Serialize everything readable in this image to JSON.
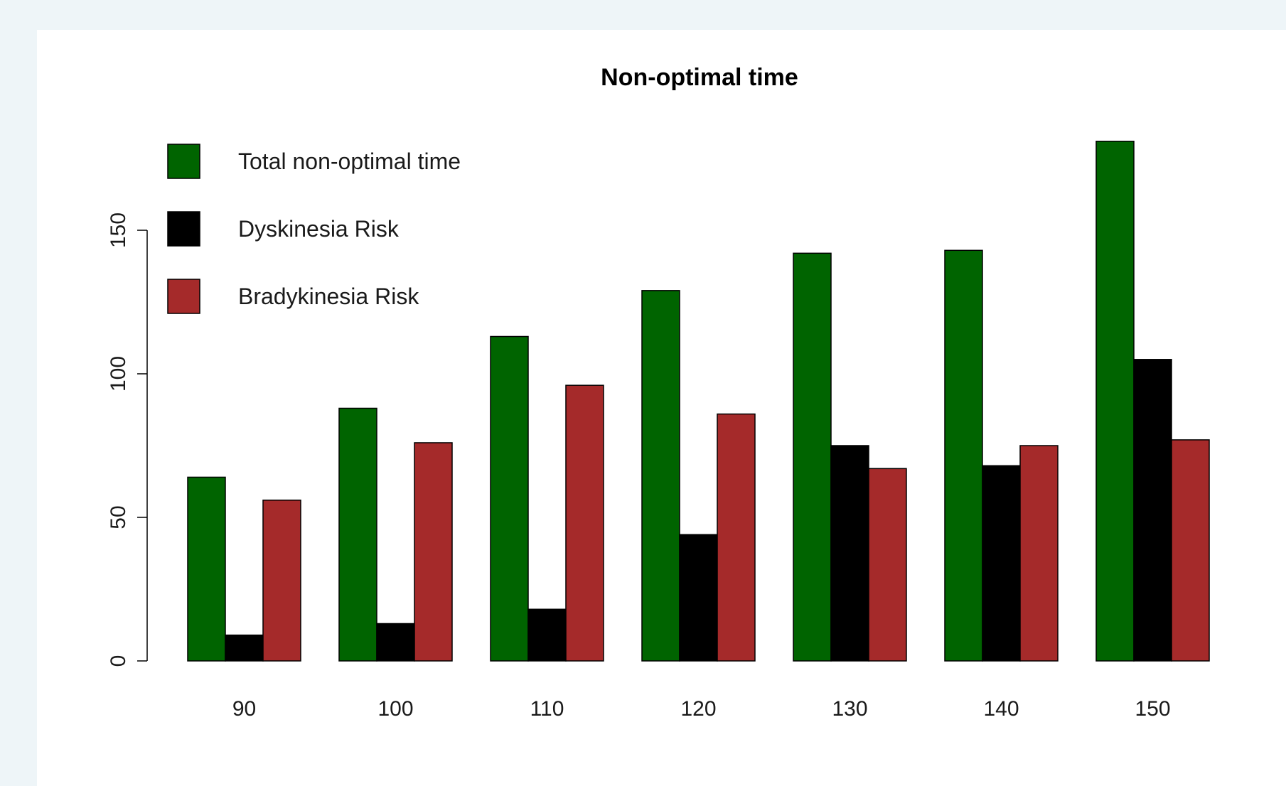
{
  "chart_data": {
    "type": "bar",
    "title": "Non-optimal time",
    "xlabel": "",
    "ylabel": "",
    "categories": [
      "90",
      "100",
      "110",
      "120",
      "130",
      "140",
      "150"
    ],
    "series": [
      {
        "name": "Total non-optimal time",
        "color": "#006400",
        "values": [
          64,
          88,
          113,
          129,
          142,
          143,
          181
        ]
      },
      {
        "name": "Dyskinesia Risk",
        "color": "#000000",
        "values": [
          9,
          13,
          18,
          44,
          75,
          68,
          105
        ]
      },
      {
        "name": "Bradykinesia Risk",
        "color": "#a52a2a",
        "values": [
          56,
          76,
          96,
          86,
          67,
          75,
          77
        ]
      }
    ],
    "yticks": [
      "0",
      "50",
      "100",
      "150"
    ],
    "ylim": [
      0,
      181
    ],
    "grid": false,
    "legend_position": "top-left"
  }
}
